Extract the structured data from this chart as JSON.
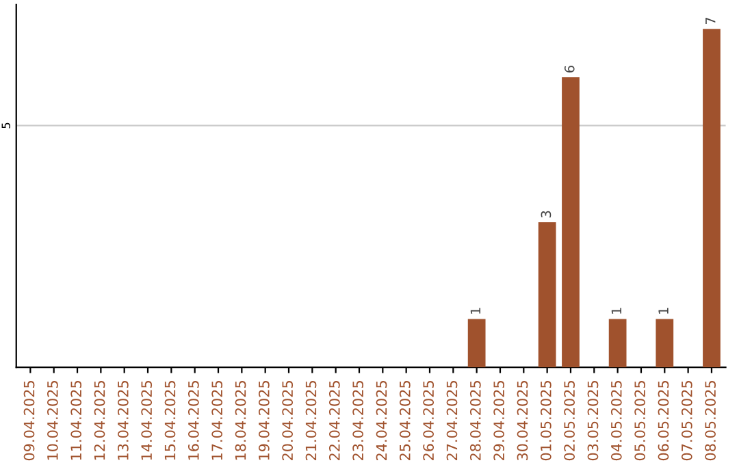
{
  "chart_data": {
    "type": "bar",
    "categories": [
      "09.04.2025",
      "10.04.2025",
      "11.04.2025",
      "12.04.2025",
      "13.04.2025",
      "14.04.2025",
      "15.04.2025",
      "16.04.2025",
      "17.04.2025",
      "18.04.2025",
      "19.04.2025",
      "20.04.2025",
      "21.04.2025",
      "22.04.2025",
      "23.04.2025",
      "24.04.2025",
      "25.04.2025",
      "26.04.2025",
      "27.04.2025",
      "28.04.2025",
      "29.04.2025",
      "30.04.2025",
      "01.05.2025",
      "02.05.2025",
      "03.05.2025",
      "04.05.2025",
      "05.05.2025",
      "06.05.2025",
      "07.05.2025",
      "08.05.2025"
    ],
    "values": [
      null,
      null,
      null,
      null,
      null,
      null,
      null,
      null,
      null,
      null,
      null,
      null,
      null,
      null,
      null,
      null,
      null,
      null,
      null,
      1,
      null,
      null,
      3,
      6,
      null,
      1,
      null,
      1,
      null,
      7
    ],
    "value_labels": [
      null,
      null,
      null,
      null,
      null,
      null,
      null,
      null,
      null,
      null,
      null,
      null,
      null,
      null,
      null,
      null,
      null,
      null,
      null,
      "1",
      null,
      null,
      "3",
      "6",
      null,
      "1",
      null,
      "1",
      null,
      "7"
    ],
    "color": "#a0522d",
    "ylim": [
      0,
      7.5
    ],
    "yticks": [
      5
    ],
    "grid": "y"
  }
}
